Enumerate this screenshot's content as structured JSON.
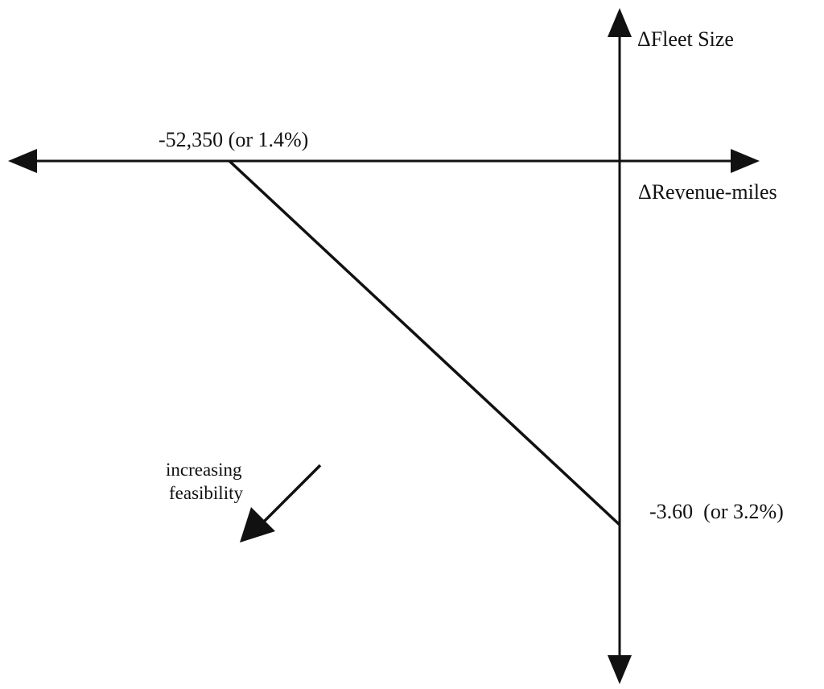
{
  "diagram": {
    "axis_labels": {
      "vertical": "ΔFleet Size",
      "horizontal": "ΔRevenue-miles"
    },
    "intercepts": {
      "horizontal_axis": "-52,350 (or 1.4%)",
      "vertical_axis": "-3.60  (or 3.2%)"
    },
    "feasibility_note": {
      "line1": "increasing",
      "line2": "feasibility"
    },
    "colors": {
      "ink": "#111111",
      "background": "#ffffff"
    }
  }
}
